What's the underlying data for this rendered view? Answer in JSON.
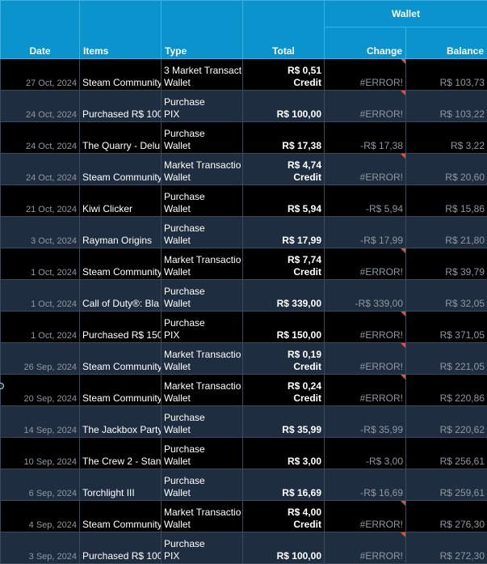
{
  "header": {
    "wallet_group": "Wallet",
    "date": "Date",
    "items": "Items",
    "type": "Type",
    "total": "Total",
    "change": "Change",
    "balance": "Balance"
  },
  "rows": [
    {
      "date": "27 Oct, 2024",
      "items": "Steam Community",
      "type_line1": "3 Market Transact",
      "type_line2": "Wallet",
      "total_line1": "R$ 0,51",
      "total_line2": "Credit",
      "change": "#ERROR!",
      "balance": "R$ 103,73"
    },
    {
      "date": "24 Oct, 2024",
      "items": "Purchased R$ 100",
      "type_line1": "Purchase",
      "type_line2": "PIX",
      "total_line1": "",
      "total_line2": "R$ 100,00",
      "change": "#ERROR!",
      "balance": "R$ 103,22"
    },
    {
      "date": "24 Oct, 2024",
      "items": "The Quarry - Delu",
      "type_line1": "Purchase",
      "type_line2": "Wallet",
      "total_line1": "",
      "total_line2": "R$ 17,38",
      "change": "-R$ 17,38",
      "balance": "R$ 3,22"
    },
    {
      "date": "24 Oct, 2024",
      "items": "Steam Community",
      "type_line1": "Market Transactio",
      "type_line2": "Wallet",
      "total_line1": "R$ 4,74",
      "total_line2": "Credit",
      "change": "#ERROR!",
      "balance": "R$ 20,60"
    },
    {
      "date": "21 Oct, 2024",
      "items": "Kiwi Clicker",
      "type_line1": "Purchase",
      "type_line2": "Wallet",
      "total_line1": "",
      "total_line2": "R$ 5,94",
      "change": "-R$ 5,94",
      "balance": "R$ 15,86"
    },
    {
      "date": "3 Oct, 2024",
      "items": "Rayman Origins",
      "type_line1": "Purchase",
      "type_line2": "Wallet",
      "total_line1": "",
      "total_line2": "R$ 17,99",
      "change": "-R$ 17,99",
      "balance": "R$ 21,80"
    },
    {
      "date": "1 Oct, 2024",
      "items": "Steam Community",
      "type_line1": "Market Transactio",
      "type_line2": "Wallet",
      "total_line1": "R$ 7,74",
      "total_line2": "Credit",
      "change": "#ERROR!",
      "balance": "R$ 39,79"
    },
    {
      "date": "1 Oct, 2024",
      "items": "Call of Duty®: Bla",
      "type_line1": "Purchase",
      "type_line2": "Wallet",
      "total_line1": "",
      "total_line2": "R$ 339,00",
      "change": "-R$ 339,00",
      "balance": "R$ 32,05"
    },
    {
      "date": "1 Oct, 2024",
      "items": "Purchased R$ 150",
      "type_line1": "Purchase",
      "type_line2": "PIX",
      "total_line1": "",
      "total_line2": "R$ 150,00",
      "change": "#ERROR!",
      "balance": "R$ 371,05"
    },
    {
      "date": "26 Sep, 2024",
      "items": "Steam Community",
      "type_line1": "Market Transactio",
      "type_line2": "Wallet",
      "total_line1": "R$ 0,19",
      "total_line2": "Credit",
      "change": "#ERROR!",
      "balance": "R$ 221,05"
    },
    {
      "date": "20 Sep, 2024",
      "items": "Steam Community",
      "type_line1": "Market Transactio",
      "type_line2": "Wallet",
      "total_line1": "R$ 0,24",
      "total_line2": "Credit",
      "change": "#ERROR!",
      "balance": "R$ 220,86"
    },
    {
      "date": "14 Sep, 2024",
      "items": "The Jackbox Party",
      "type_line1": "Purchase",
      "type_line2": "Wallet",
      "total_line1": "",
      "total_line2": "R$ 35,99",
      "change": "-R$ 35,99",
      "balance": "R$ 220,62"
    },
    {
      "date": "10 Sep, 2024",
      "items": "The Crew 2 - Stan",
      "type_line1": "Purchase",
      "type_line2": "Wallet",
      "total_line1": "",
      "total_line2": "R$ 3,00",
      "change": "-R$ 3,00",
      "balance": "R$ 256,61"
    },
    {
      "date": "6 Sep, 2024",
      "items": "Torchlight III",
      "type_line1": "Purchase",
      "type_line2": "Wallet",
      "total_line1": "",
      "total_line2": "R$ 16,69",
      "change": "-R$ 16,69",
      "balance": "R$ 259,61"
    },
    {
      "date": "4 Sep, 2024",
      "items": "Steam Community",
      "type_line1": "Market Transactio",
      "type_line2": "Wallet",
      "total_line1": "R$ 4,00",
      "total_line2": "Credit",
      "change": "#ERROR!",
      "balance": "R$ 276,30"
    },
    {
      "date": "3 Sep, 2024",
      "items": "Purchased R$ 100",
      "type_line1": "Purchase",
      "type_line2": "PIX",
      "total_line1": "",
      "total_line2": "R$ 100,00",
      "change": "#ERROR!",
      "balance": "R$ 272,30"
    }
  ]
}
